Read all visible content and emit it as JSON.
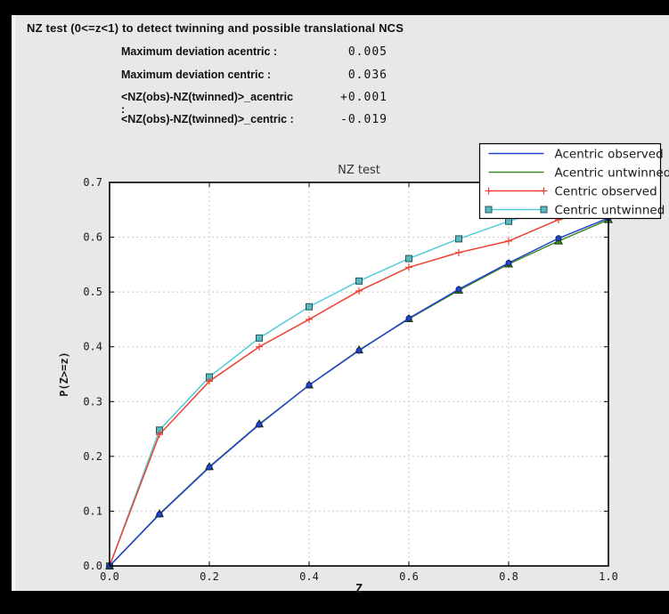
{
  "window": {
    "background": "#000000",
    "panel_background": "#e8e8e8",
    "panel_edge": "#f7f7f7"
  },
  "header": {
    "title": "NZ test (0<=z<1) to detect twinning and possible translational NCS",
    "stats": [
      {
        "label": "Maximum deviation acentric :",
        "value": "0.005"
      },
      {
        "label": "Maximum deviation centric :",
        "value": "0.036"
      },
      {
        "label": "<NZ(obs)-NZ(twinned)>_acentric :",
        "value": "+0.001"
      },
      {
        "label": "<NZ(obs)-NZ(twinned)>_centric :",
        "value": "-0.019"
      }
    ]
  },
  "chart_data": {
    "type": "line",
    "title": "NZ test",
    "xlabel": "Z",
    "ylabel": "P(Z>=z)",
    "xlim": [
      0.0,
      1.0
    ],
    "ylim": [
      0.0,
      0.7
    ],
    "x_ticks": [
      0.0,
      0.2,
      0.4,
      0.6,
      0.8,
      1.0
    ],
    "y_ticks": [
      0.0,
      0.1,
      0.2,
      0.3,
      0.4,
      0.5,
      0.6,
      0.7
    ],
    "grid": "dashed",
    "legend_position": "upper right",
    "plot_bg": "#ffffff",
    "grid_color": "#c8c8c8",
    "x": [
      0.0,
      0.1,
      0.2,
      0.3,
      0.4,
      0.5,
      0.6,
      0.7,
      0.8,
      0.9,
      1.0
    ],
    "series": [
      {
        "name": "Acentric observed",
        "color": "#2443cf",
        "marker": "circle",
        "marker_fill": "#2443cf",
        "marker_edge": "#10205e",
        "values": [
          0.0,
          0.094,
          0.18,
          0.258,
          0.33,
          0.393,
          0.452,
          0.505,
          0.553,
          0.598,
          0.635
        ]
      },
      {
        "name": "Acentric untwinned",
        "color": "#3e8a24",
        "marker": "triangle",
        "marker_fill": "#3e8a24",
        "marker_edge": "#173f0c",
        "values": [
          0.0,
          0.095,
          0.181,
          0.259,
          0.33,
          0.394,
          0.451,
          0.503,
          0.551,
          0.593,
          0.632
        ]
      },
      {
        "name": "Centric observed",
        "color": "#ee4130",
        "marker": "plus",
        "marker_fill": "#ee4130",
        "marker_edge": "#ee4130",
        "values": [
          0.0,
          0.24,
          0.337,
          0.4,
          0.45,
          0.502,
          0.545,
          0.572,
          0.593,
          0.632,
          0.658
        ]
      },
      {
        "name": "Centric untwinned",
        "color": "#53ccd8",
        "marker": "square",
        "marker_fill": "#5cb8bf",
        "marker_edge": "#24565c",
        "values": [
          0.0,
          0.248,
          0.345,
          0.416,
          0.473,
          0.52,
          0.561,
          0.597,
          0.629,
          0.657,
          0.683
        ]
      }
    ]
  }
}
